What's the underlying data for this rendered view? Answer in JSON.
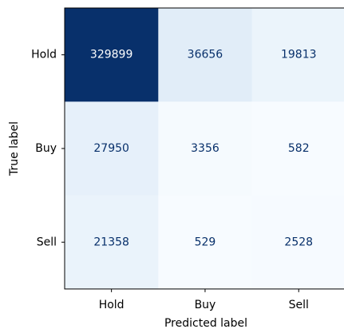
{
  "chart_data": {
    "type": "heatmap",
    "x_categories": [
      "Hold",
      "Buy",
      "Sell"
    ],
    "y_categories": [
      "Hold",
      "Buy",
      "Sell"
    ],
    "values": [
      [
        329899,
        36656,
        19813
      ],
      [
        27950,
        3356,
        582
      ],
      [
        21358,
        529,
        2528
      ]
    ],
    "xlabel": "Predicted label",
    "ylabel": "True label",
    "colormap": [
      "#f7fbff",
      "#deebf7",
      "#c6dbef",
      "#9ecae1",
      "#6baed6",
      "#4292c6",
      "#2171b5",
      "#08519c",
      "#08306b"
    ],
    "text_colors": [
      "#08306b",
      "#ffffff"
    ]
  }
}
